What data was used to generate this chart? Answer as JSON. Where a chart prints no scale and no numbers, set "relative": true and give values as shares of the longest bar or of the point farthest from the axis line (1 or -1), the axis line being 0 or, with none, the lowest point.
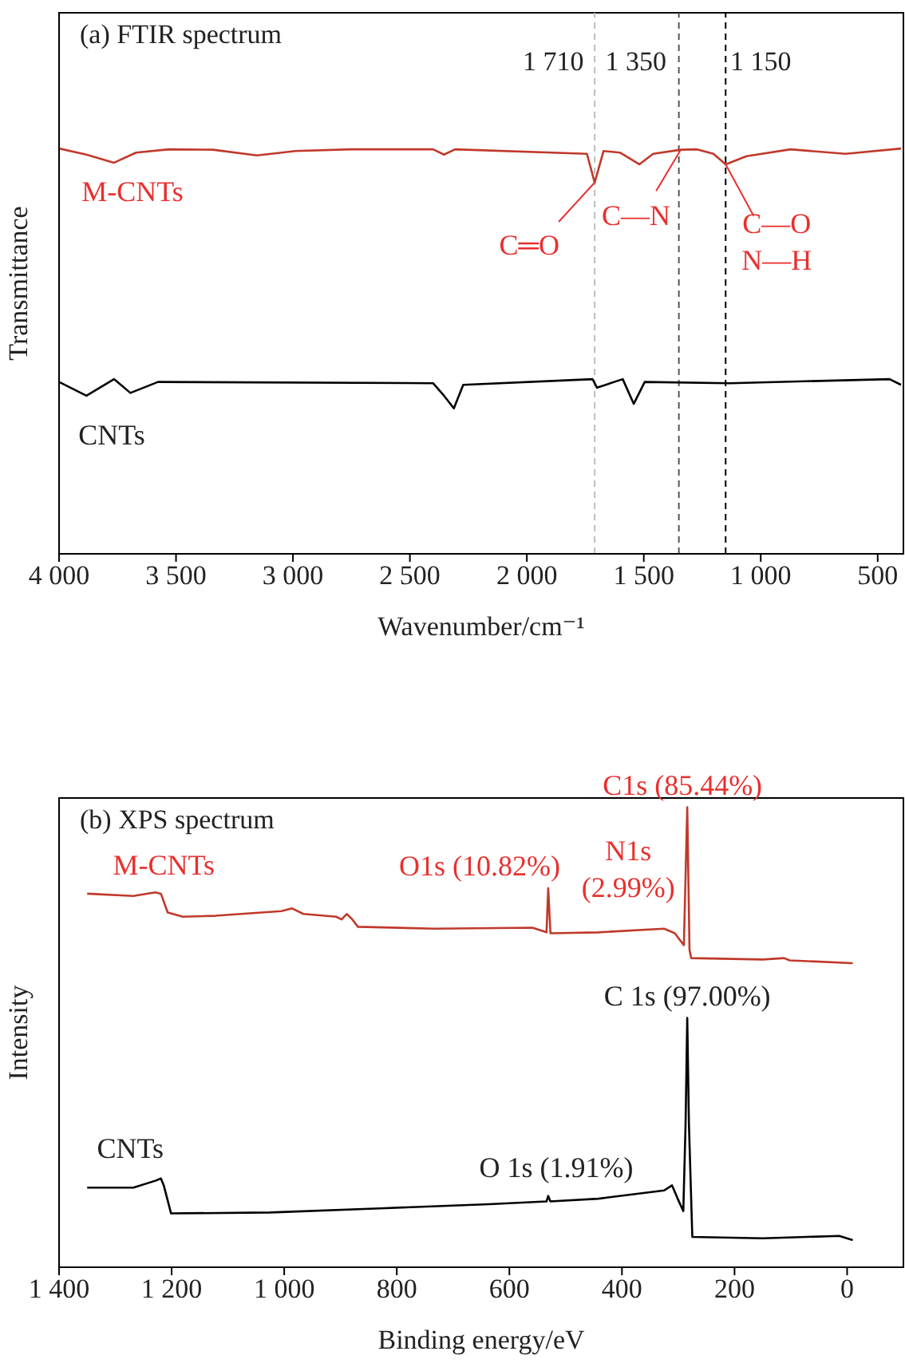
{
  "chart_data": [
    {
      "type": "line",
      "title": "(a) FTIR spectrum",
      "xlabel": "Wavenumber/cm⁻¹",
      "ylabel": "Transmittance",
      "relative": true,
      "xlim": [
        4000,
        390
      ],
      "xticks": [
        {
          "value": 4000,
          "label": "4 000"
        },
        {
          "value": 3500,
          "label": "3 500"
        },
        {
          "value": 3000,
          "label": "3 000"
        },
        {
          "value": 2500,
          "label": "2 500"
        },
        {
          "value": 2000,
          "label": "2 000"
        },
        {
          "value": 1500,
          "label": "1 500"
        },
        {
          "value": 1000,
          "label": "1 000"
        },
        500
      ],
      "series": [
        {
          "name": "M-CNTs",
          "color": "#c0392b",
          "x": [
            4000,
            3883,
            3765,
            3671,
            3530,
            3342,
            3154,
            2989,
            2754,
            2401,
            2354,
            2307,
            1743,
            1710,
            1672,
            1602,
            1519,
            1460,
            1342,
            1272,
            1202,
            1150,
            1061,
            872,
            637,
            400
          ],
          "values": [
            1.0,
            0.985,
            0.965,
            0.99,
            0.998,
            0.997,
            0.983,
            0.994,
            0.998,
            0.998,
            0.985,
            0.998,
            0.987,
            0.916,
            0.994,
            0.99,
            0.961,
            0.987,
            0.997,
            0.998,
            0.987,
            0.961,
            0.981,
            0.998,
            0.987,
            1.0
          ]
        },
        {
          "name": "CNTs",
          "color": "#000000",
          "x": [
            4000,
            3883,
            3765,
            3695,
            3577,
            2401,
            2354,
            2312,
            2272,
            1719,
            1700,
            1590,
            1543,
            1496,
            1131,
            449,
            400
          ],
          "values": [
            0.424,
            0.39,
            0.431,
            0.397,
            0.424,
            0.421,
            0.39,
            0.359,
            0.417,
            0.431,
            0.41,
            0.431,
            0.37,
            0.424,
            0.421,
            0.431,
            0.417
          ]
        }
      ],
      "ref_lines": [
        {
          "axis": "x",
          "value": 1710,
          "label": "1 710",
          "color": "#bdbdbd",
          "line_style": "dashed"
        },
        {
          "axis": "x",
          "value": 1350,
          "label": "1 350",
          "color": "#555555",
          "line_style": "dashed"
        },
        {
          "axis": "x",
          "value": 1150,
          "label": "1 150",
          "color": "#000000",
          "line_style": "dashed"
        }
      ],
      "annotations": [
        {
          "text": "C═O",
          "x": 1710,
          "y": 0.916
        },
        {
          "text": "C—N",
          "x": 1342,
          "y": 0.997
        },
        {
          "text": "C—O\nN—H",
          "x": 1150,
          "y": 0.961
        }
      ]
    },
    {
      "type": "line",
      "title": "(b) XPS spectrum",
      "xlabel": "Binding energy/eV",
      "ylabel": "Intensity",
      "relative": true,
      "xlim": [
        1400,
        -100
      ],
      "xticks": [
        {
          "value": 1400,
          "label": "1 400"
        },
        {
          "value": 1200,
          "label": "1 200"
        },
        {
          "value": 1000,
          "label": "1 000"
        },
        800,
        600,
        400,
        200,
        0
      ],
      "series": [
        {
          "name": "M-CNTs",
          "color": "#c0392b",
          "x": [
            1350,
            1268,
            1229,
            1219,
            1207,
            1180,
            1122,
            1005,
            986,
            966,
            908,
            898,
            889,
            879,
            869,
            733,
            559,
            534,
            531,
            527,
            442,
            325,
            306,
            290,
            284,
            280,
            277,
            150,
            112,
            102,
            -10
          ],
          "values": [
            0.812,
            0.807,
            0.815,
            0.812,
            0.771,
            0.762,
            0.764,
            0.774,
            0.78,
            0.768,
            0.762,
            0.756,
            0.768,
            0.756,
            0.74,
            0.736,
            0.738,
            0.728,
            0.824,
            0.726,
            0.728,
            0.736,
            0.726,
            0.7,
            1.0,
            0.69,
            0.672,
            0.669,
            0.672,
            0.667,
            0.661
          ]
        },
        {
          "name": "CNTs",
          "color": "#000000",
          "x": [
            1350,
            1268,
            1229,
            1219,
            1214,
            1201,
            1025,
            830,
            636,
            534,
            531,
            527,
            442,
            325,
            311,
            301,
            291,
            287,
            284,
            281,
            275,
            150,
            14,
            -10
          ],
          "values": [
            0.173,
            0.173,
            0.188,
            0.193,
            0.178,
            0.117,
            0.119,
            0.128,
            0.137,
            0.143,
            0.155,
            0.143,
            0.149,
            0.167,
            0.178,
            0.149,
            0.122,
            0.31,
            0.542,
            0.31,
            0.066,
            0.063,
            0.068,
            0.059
          ]
        }
      ],
      "annotations": [
        {
          "text": "C1s (85.44%)",
          "x": 284,
          "y": 1.0
        },
        {
          "text": "O1s (10.82%)",
          "x": 531,
          "y": 0.824
        },
        {
          "text": "N1s\n(2.99%)",
          "x": 400,
          "y": 0.73
        },
        {
          "text": "C 1s (97.00%)",
          "x": 284,
          "y": 0.542
        },
        {
          "text": "O 1s (1.91%)",
          "x": 531,
          "y": 0.155
        }
      ]
    }
  ]
}
